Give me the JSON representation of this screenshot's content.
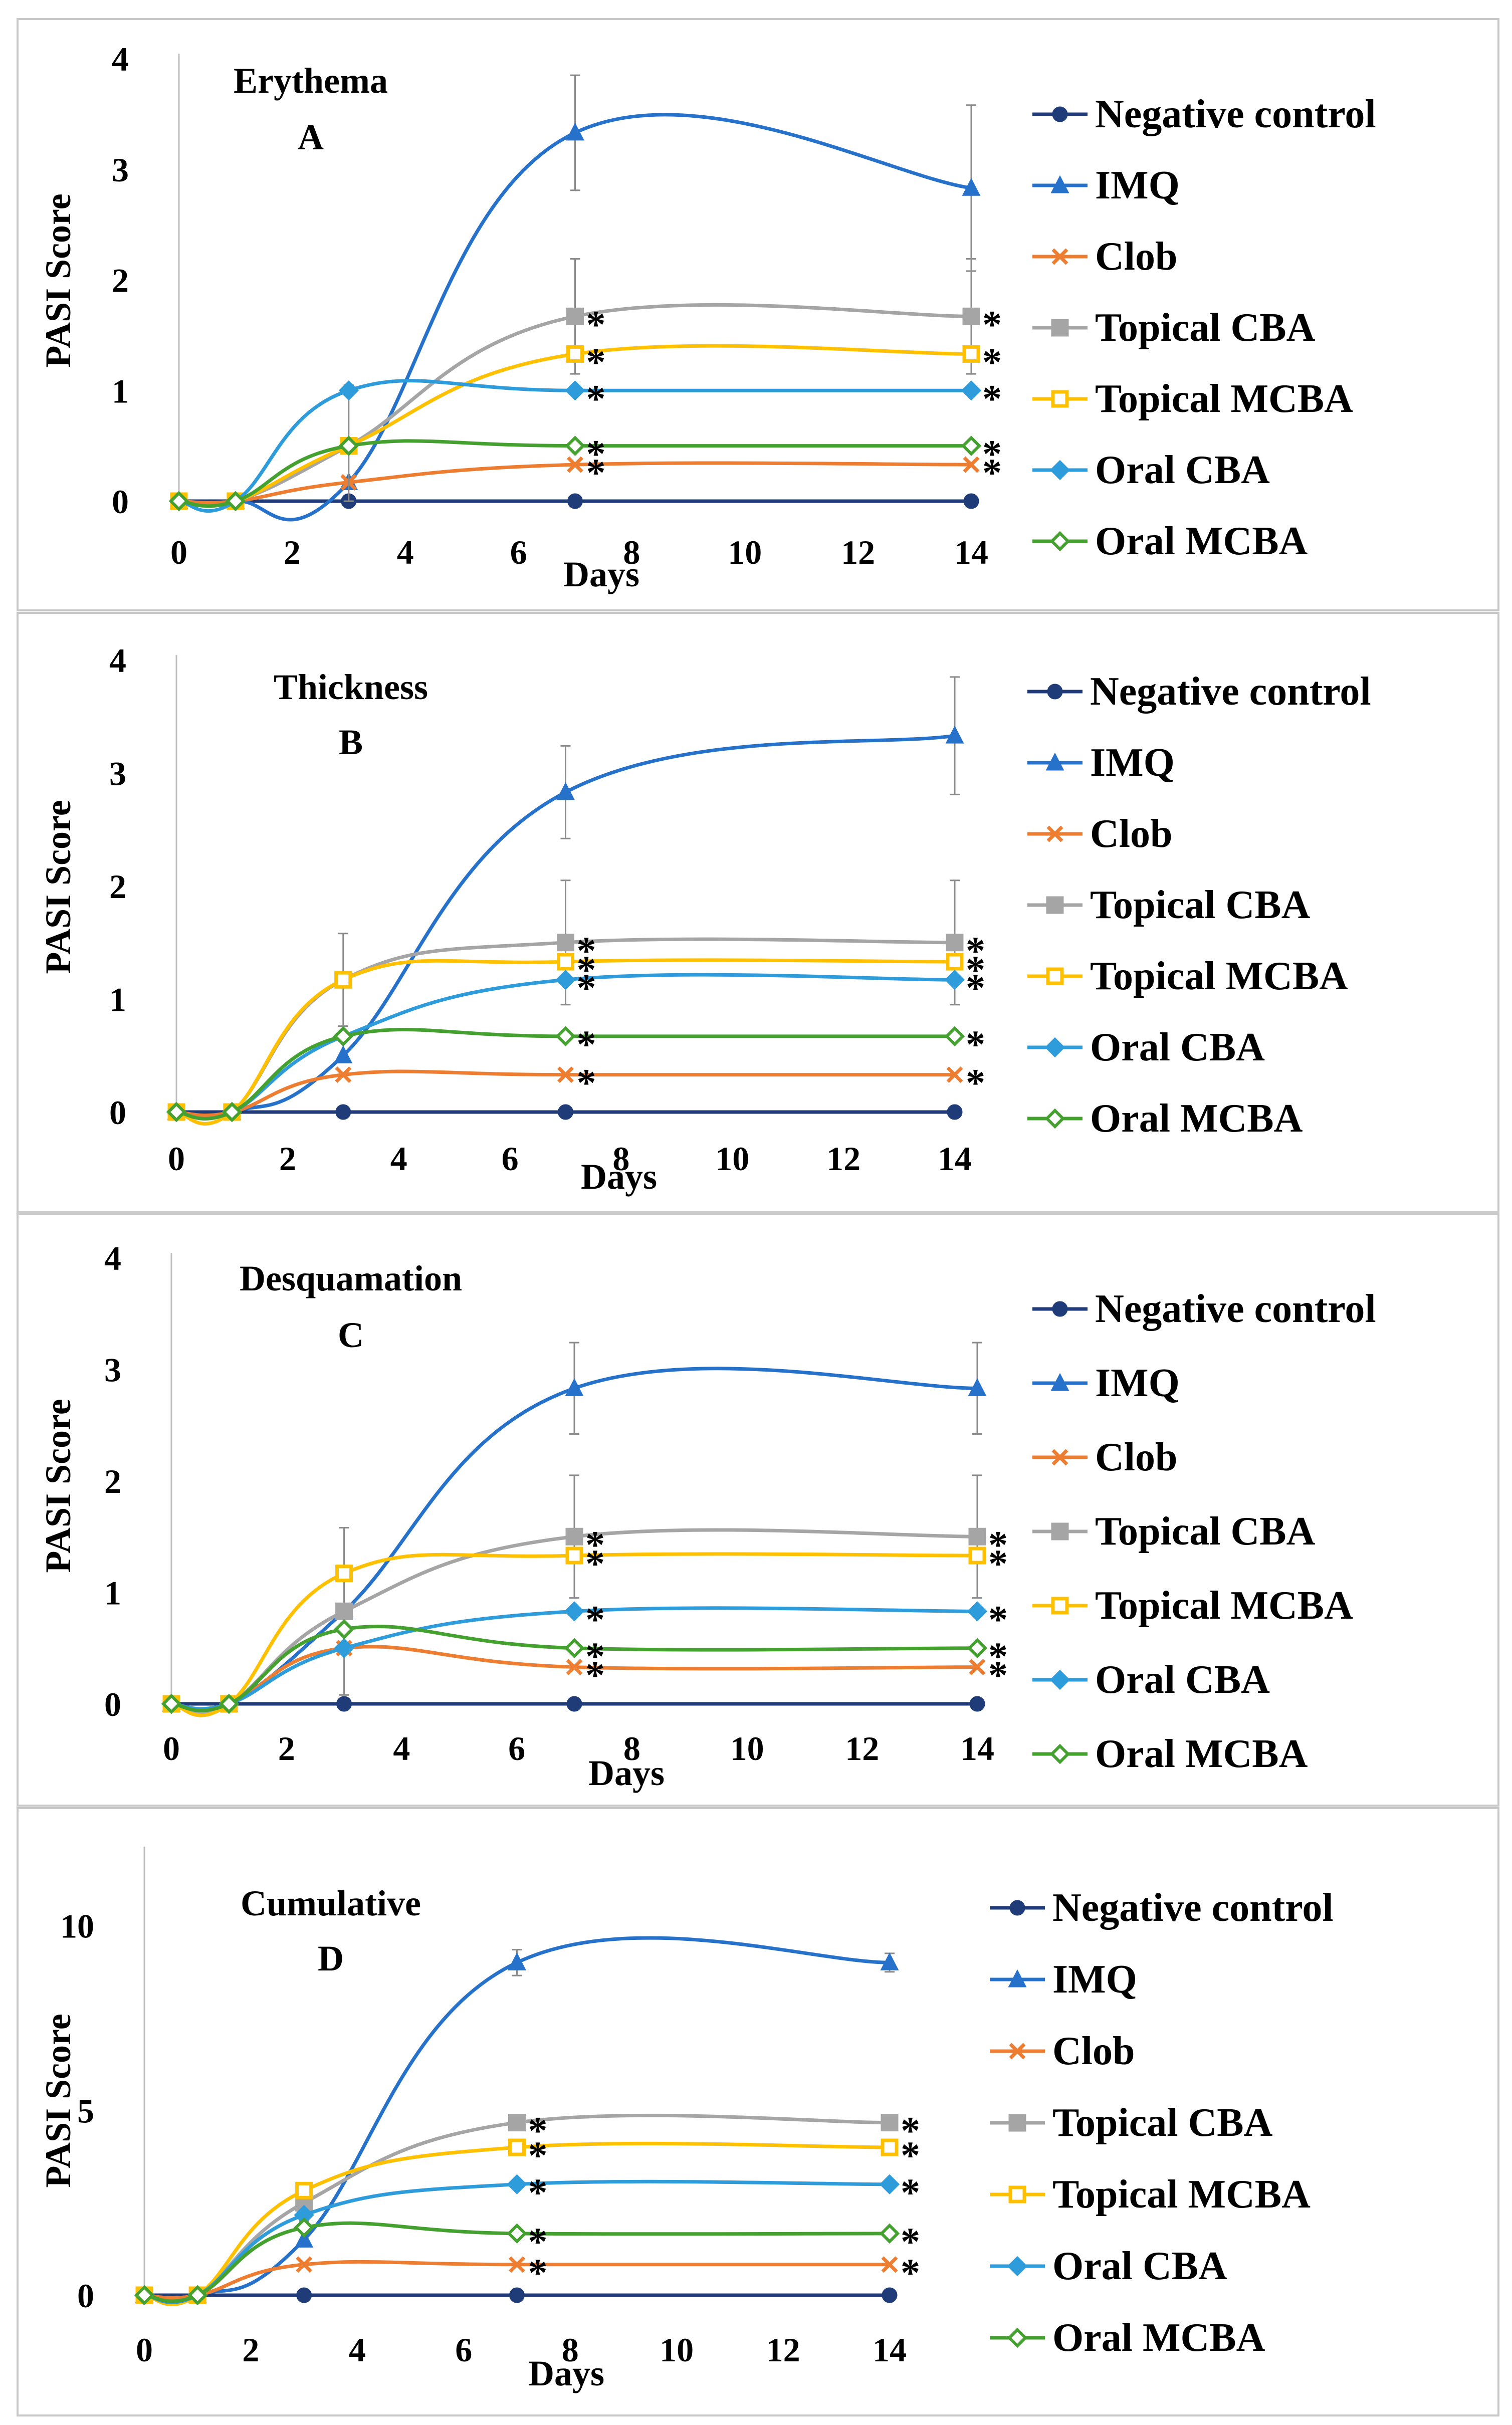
{
  "chart_data": [
    {
      "type": "line",
      "title": "Erythema",
      "panel_label": "A",
      "xlabel": "Days",
      "ylabel": "PASI  Score",
      "xlim": [
        0,
        14
      ],
      "ylim": [
        0,
        4
      ],
      "x_ticks": [
        0,
        2,
        4,
        6,
        8,
        10,
        12,
        14
      ],
      "y_ticks": [
        0,
        1,
        2,
        3,
        4
      ],
      "x": [
        0,
        1,
        3,
        7,
        14
      ],
      "series": [
        {
          "name": "Negative control",
          "values": [
            0,
            0,
            0,
            0,
            0
          ]
        },
        {
          "name": "IMQ",
          "values": [
            0,
            0,
            0.17,
            3.33,
            2.83
          ],
          "error": [
            0,
            0,
            0,
            0.52,
            0.75
          ]
        },
        {
          "name": "Clob",
          "values": [
            0,
            0,
            0.17,
            0.33,
            0.33
          ],
          "sig": [
            false,
            false,
            false,
            true,
            true
          ]
        },
        {
          "name": "Topical CBA",
          "values": [
            0,
            0,
            0.5,
            1.67,
            1.67
          ],
          "error": [
            0,
            0,
            0.55,
            0.52,
            0.52
          ],
          "sig": [
            false,
            false,
            false,
            true,
            true
          ]
        },
        {
          "name": "Topical MCBA",
          "values": [
            0,
            0,
            0.5,
            1.33,
            1.33
          ],
          "sig": [
            false,
            false,
            false,
            true,
            true
          ]
        },
        {
          "name": "Oral CBA",
          "values": [
            0,
            0,
            1.0,
            1.0,
            1.0
          ],
          "sig": [
            false,
            false,
            false,
            true,
            true
          ]
        },
        {
          "name": "Oral MCBA",
          "values": [
            0,
            0,
            0.5,
            0.5,
            0.5
          ],
          "sig": [
            false,
            false,
            false,
            true,
            true
          ]
        }
      ]
    },
    {
      "type": "line",
      "title": "Thickness",
      "panel_label": "B",
      "xlabel": "Days",
      "ylabel": "PASI  Score",
      "xlim": [
        0,
        14
      ],
      "ylim": [
        0,
        4
      ],
      "x_ticks": [
        0,
        2,
        4,
        6,
        8,
        10,
        12,
        14
      ],
      "y_ticks": [
        0,
        1,
        2,
        3,
        4
      ],
      "x": [
        0,
        1,
        3,
        7,
        14
      ],
      "series": [
        {
          "name": "Negative control",
          "values": [
            0,
            0,
            0,
            0,
            0
          ]
        },
        {
          "name": "IMQ",
          "values": [
            0,
            0,
            0.5,
            2.83,
            3.33
          ],
          "error": [
            0,
            0,
            0,
            0.41,
            0.52
          ]
        },
        {
          "name": "Clob",
          "values": [
            0,
            0,
            0.33,
            0.33,
            0.33
          ],
          "sig": [
            false,
            false,
            false,
            true,
            true
          ]
        },
        {
          "name": "Topical CBA",
          "values": [
            0,
            0,
            1.17,
            1.5,
            1.5
          ],
          "error": [
            0,
            0,
            0.41,
            0.55,
            0.55
          ],
          "sig": [
            false,
            false,
            false,
            true,
            true
          ]
        },
        {
          "name": "Topical MCBA",
          "values": [
            0,
            0,
            1.17,
            1.33,
            1.33
          ],
          "sig": [
            false,
            false,
            false,
            true,
            true
          ]
        },
        {
          "name": "Oral CBA",
          "values": [
            0,
            0,
            0.67,
            1.17,
            1.17
          ],
          "sig": [
            false,
            false,
            false,
            true,
            true
          ]
        },
        {
          "name": "Oral MCBA",
          "values": [
            0,
            0,
            0.67,
            0.67,
            0.67
          ],
          "sig": [
            false,
            false,
            false,
            true,
            true
          ]
        }
      ]
    },
    {
      "type": "line",
      "title": "Desquamation",
      "panel_label": "C",
      "xlabel": "Days",
      "ylabel": "PASI  Score",
      "xlim": [
        0,
        14
      ],
      "ylim": [
        0,
        4
      ],
      "x_ticks": [
        0,
        2,
        4,
        6,
        8,
        10,
        12,
        14
      ],
      "y_ticks": [
        0,
        1,
        2,
        3,
        4
      ],
      "x": [
        0,
        1,
        3,
        7,
        14
      ],
      "series": [
        {
          "name": "Negative control",
          "values": [
            0,
            0,
            0,
            0,
            0
          ]
        },
        {
          "name": "IMQ",
          "values": [
            0,
            0,
            0.83,
            2.83,
            2.83
          ],
          "error": [
            0,
            0,
            0,
            0.41,
            0.41
          ]
        },
        {
          "name": "Clob",
          "values": [
            0,
            0,
            0.5,
            0.33,
            0.33
          ],
          "sig": [
            false,
            false,
            false,
            true,
            true
          ]
        },
        {
          "name": "Topical CBA",
          "values": [
            0,
            0,
            0.83,
            1.5,
            1.5
          ],
          "error": [
            0,
            0,
            0.75,
            0.55,
            0.55
          ],
          "sig": [
            false,
            false,
            false,
            true,
            true
          ]
        },
        {
          "name": "Topical MCBA",
          "values": [
            0,
            0,
            1.17,
            1.33,
            1.33
          ],
          "sig": [
            false,
            false,
            false,
            true,
            true
          ]
        },
        {
          "name": "Oral CBA",
          "values": [
            0,
            0,
            0.5,
            0.83,
            0.83
          ],
          "sig": [
            false,
            false,
            false,
            true,
            true
          ]
        },
        {
          "name": "Oral MCBA",
          "values": [
            0,
            0,
            0.67,
            0.5,
            0.5
          ],
          "sig": [
            false,
            false,
            false,
            true,
            true
          ]
        }
      ]
    },
    {
      "type": "line",
      "title": "Cumulative",
      "panel_label": "D",
      "xlabel": "Days",
      "ylabel": "PASI Score",
      "xlim": [
        0,
        14
      ],
      "ylim": [
        0,
        12
      ],
      "x_ticks": [
        0,
        2,
        4,
        6,
        8,
        10,
        12,
        14
      ],
      "y_ticks": [
        0,
        5,
        10
      ],
      "x": [
        0,
        1,
        3,
        7,
        14
      ],
      "series": [
        {
          "name": "Negative control",
          "values": [
            0,
            0,
            0,
            0,
            0
          ]
        },
        {
          "name": "IMQ",
          "values": [
            0,
            0,
            1.5,
            9.0,
            9.0
          ],
          "error": [
            0,
            0,
            0,
            0.35,
            0.25
          ]
        },
        {
          "name": "Clob",
          "values": [
            0,
            0,
            0.83,
            0.83,
            0.83
          ],
          "sig": [
            false,
            false,
            false,
            true,
            true
          ]
        },
        {
          "name": "Topical CBA",
          "values": [
            0,
            0,
            2.5,
            4.67,
            4.67
          ],
          "error": [
            0,
            0,
            0.5,
            0,
            0
          ],
          "sig": [
            false,
            false,
            false,
            true,
            true
          ]
        },
        {
          "name": "Topical MCBA",
          "values": [
            0,
            0,
            2.83,
            4.0,
            4.0
          ],
          "sig": [
            false,
            false,
            false,
            true,
            true
          ]
        },
        {
          "name": "Oral CBA",
          "values": [
            0,
            0,
            2.17,
            3.0,
            3.0
          ],
          "sig": [
            false,
            false,
            false,
            true,
            true
          ]
        },
        {
          "name": "Oral MCBA",
          "values": [
            0,
            0,
            1.83,
            1.67,
            1.67
          ],
          "sig": [
            false,
            false,
            false,
            true,
            true
          ]
        }
      ]
    }
  ],
  "legend_labels": [
    "Negative control",
    "IMQ",
    "Clob",
    "Topical CBA",
    "Topical MCBA",
    "Oral CBA",
    "Oral MCBA"
  ],
  "colors": {
    "Negative control": "#1F3C78",
    "IMQ": "#2672CB",
    "Clob": "#ED7D31",
    "Topical CBA": "#A5A5A5",
    "Topical MCBA": "#FFC000",
    "Oral CBA": "#2E9BDA",
    "Oral MCBA": "#44A12F"
  },
  "markers": {
    "Negative control": "circle-icon",
    "IMQ": "triangle-icon",
    "Clob": "x-cross-icon",
    "Topical CBA": "filled-square-icon",
    "Topical MCBA": "hollow-square-icon",
    "Oral CBA": "diamond-icon",
    "Oral MCBA": "hollow-diamond-icon"
  },
  "significance_symbol": "*"
}
